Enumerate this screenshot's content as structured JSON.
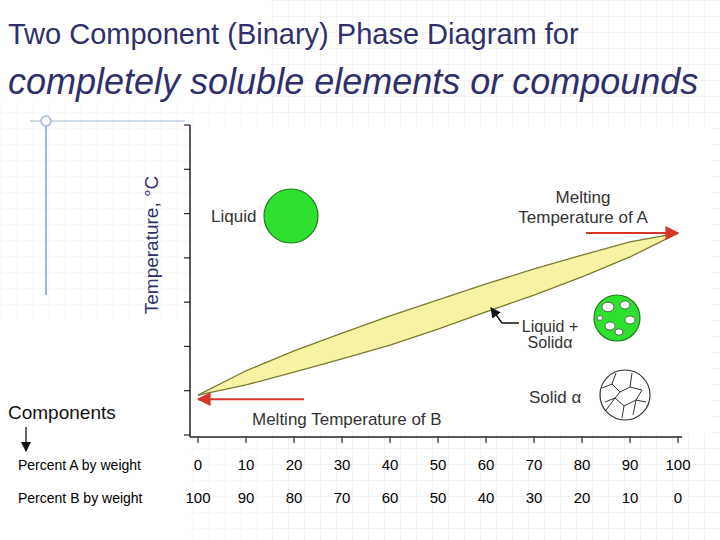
{
  "chart_data": {
    "type": "line",
    "title": "Two Component (Binary) Phase Diagram for",
    "subtitle": "completely soluble elements or compounds",
    "xlabel": "Percent A by weight",
    "x2label": "Percent B by weight",
    "ylabel": "Temperature, °C",
    "x": [
      0,
      10,
      20,
      30,
      40,
      50,
      60,
      70,
      80,
      90,
      100
    ],
    "series": [
      {
        "color": "#7a7a30",
        "values": [
          9.0,
          14.5,
          19.0,
          23.0,
          26.9,
          30.5,
          34.1,
          37.5,
          40.6,
          43.6,
          45.6
        ]
      },
      {
        "color": "#7a7a30",
        "values": [
          9.0,
          11.3,
          14.2,
          17.2,
          20.3,
          23.9,
          27.8,
          31.6,
          35.7,
          40.2,
          45.6
        ]
      }
    ],
    "xlim": [
      0,
      100
    ],
    "xticks": [
      0,
      10,
      20,
      30,
      40,
      50,
      60,
      70,
      80,
      90,
      100
    ],
    "x2lim": [
      100,
      0
    ],
    "x2ticks": [
      100,
      90,
      80,
      70,
      60,
      50,
      40,
      30,
      20,
      10,
      0
    ],
    "ylim": [
      0,
      70
    ],
    "yticks": [
      0,
      10,
      20,
      30,
      40,
      50,
      60,
      70
    ],
    "tick_labels": "x",
    "grid": false,
    "annotations": [
      "Liquid",
      "Melting\nTemperature of A",
      "Liquid +\nSolidα",
      "Solid α",
      "Melting Temperature of B",
      "Components"
    ]
  }
}
